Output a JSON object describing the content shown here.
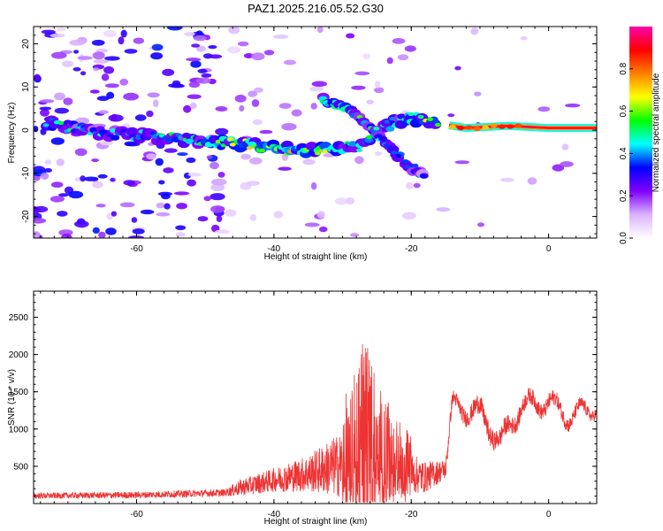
{
  "title": "PAZ1.2025.216.05.52.G30",
  "chart_data": [
    {
      "type": "heatmap",
      "xlabel": "Height of straight line (km)",
      "ylabel": "Frequency (Hz)",
      "xlim": [
        -75,
        7
      ],
      "ylim": [
        -25,
        24
      ],
      "xticks": [
        -60,
        -40,
        -20,
        0
      ],
      "yticks": [
        -20,
        -10,
        0,
        10,
        20
      ],
      "xtick_labels": [
        "-60",
        "-40",
        "-20",
        "0"
      ],
      "ytick_labels": [
        "-20",
        "-10",
        "0",
        "10",
        "20"
      ],
      "colorbar": {
        "label": "Normalized spectral amplitude",
        "range": [
          0,
          1
        ],
        "ticks": [
          0.0,
          0.2,
          0.4,
          0.6,
          0.8
        ],
        "tick_labels": [
          "0.0",
          "0.2",
          "0.4",
          "0.6",
          "0.8"
        ],
        "colors": [
          "#ffffff",
          "#d9b3ff",
          "#8000ff",
          "#0000ff",
          "#00ffff",
          "#00ff00",
          "#ffff00",
          "#ff8000",
          "#ff0000",
          "#ff00aa"
        ]
      },
      "ridge": [
        {
          "x": -73,
          "y": 1.5,
          "amp": 0.45
        },
        {
          "x": -66,
          "y": -0.5,
          "amp": 0.35
        },
        {
          "x": -58,
          "y": -1.5,
          "amp": 0.4
        },
        {
          "x": -50,
          "y": -2.5,
          "amp": 0.45
        },
        {
          "x": -44,
          "y": -3.5,
          "amp": 0.55
        },
        {
          "x": -38,
          "y": -4.5,
          "amp": 0.6
        },
        {
          "x": -32,
          "y": -4.5,
          "amp": 0.55
        },
        {
          "x": -27,
          "y": -3.5,
          "amp": 0.45
        },
        {
          "x": -24,
          "y": 1.0,
          "amp": 0.4
        },
        {
          "x": -20,
          "y": 3.0,
          "amp": 0.5
        },
        {
          "x": -16,
          "y": 1.5,
          "amp": 0.55
        },
        {
          "x": -12,
          "y": 0.5,
          "amp": 0.75
        },
        {
          "x": -6,
          "y": 1.0,
          "amp": 0.9
        },
        {
          "x": 0,
          "y": 0.5,
          "amp": 0.95
        },
        {
          "x": 7,
          "y": 0.5,
          "amp": 0.95
        }
      ],
      "branch": [
        {
          "x": -33,
          "y": 7.0,
          "amp": 0.45
        },
        {
          "x": -29,
          "y": 5.0,
          "amp": 0.55
        },
        {
          "x": -26,
          "y": 1.0,
          "amp": 0.4
        },
        {
          "x": -22,
          "y": -6.0,
          "amp": 0.4
        },
        {
          "x": -18,
          "y": -11.0,
          "amp": 0.3
        }
      ]
    },
    {
      "type": "line",
      "xlabel": "Height of straight line (km)",
      "ylabel": "SNR (10 * v/v)",
      "xlim": [
        -75,
        7
      ],
      "ylim": [
        0,
        2850
      ],
      "xticks": [
        -60,
        -40,
        -20,
        0
      ],
      "yticks": [
        500,
        1000,
        1500,
        2000,
        2500
      ],
      "xtick_labels": [
        "-60",
        "-40",
        "-20",
        "0"
      ],
      "ytick_labels": [
        "500",
        "1000",
        "1500",
        "2000",
        "2500"
      ],
      "color": "#ee3333",
      "envelope": [
        {
          "x": -75,
          "base": 100,
          "amp": 80
        },
        {
          "x": -60,
          "base": 110,
          "amp": 90
        },
        {
          "x": -47,
          "base": 140,
          "amp": 100
        },
        {
          "x": -45,
          "base": 200,
          "amp": 220
        },
        {
          "x": -40,
          "base": 300,
          "amp": 320
        },
        {
          "x": -35,
          "base": 380,
          "amp": 500
        },
        {
          "x": -30,
          "base": 480,
          "amp": 900
        },
        {
          "x": -27,
          "base": 600,
          "amp": 1700
        },
        {
          "x": -25,
          "base": 550,
          "amp": 1100
        },
        {
          "x": -22,
          "base": 420,
          "amp": 700
        },
        {
          "x": -18,
          "base": 330,
          "amp": 420
        },
        {
          "x": -15,
          "base": 450,
          "amp": 260
        },
        {
          "x": -14,
          "base": 1300,
          "amp": 200
        },
        {
          "x": -10,
          "base": 1200,
          "amp": 280
        },
        {
          "x": -7,
          "base": 800,
          "amp": 260
        },
        {
          "x": -4,
          "base": 1300,
          "amp": 230
        },
        {
          "x": 0,
          "base": 1350,
          "amp": 220
        },
        {
          "x": 3,
          "base": 1150,
          "amp": 200
        },
        {
          "x": 7,
          "base": 1300,
          "amp": 150
        }
      ]
    }
  ]
}
